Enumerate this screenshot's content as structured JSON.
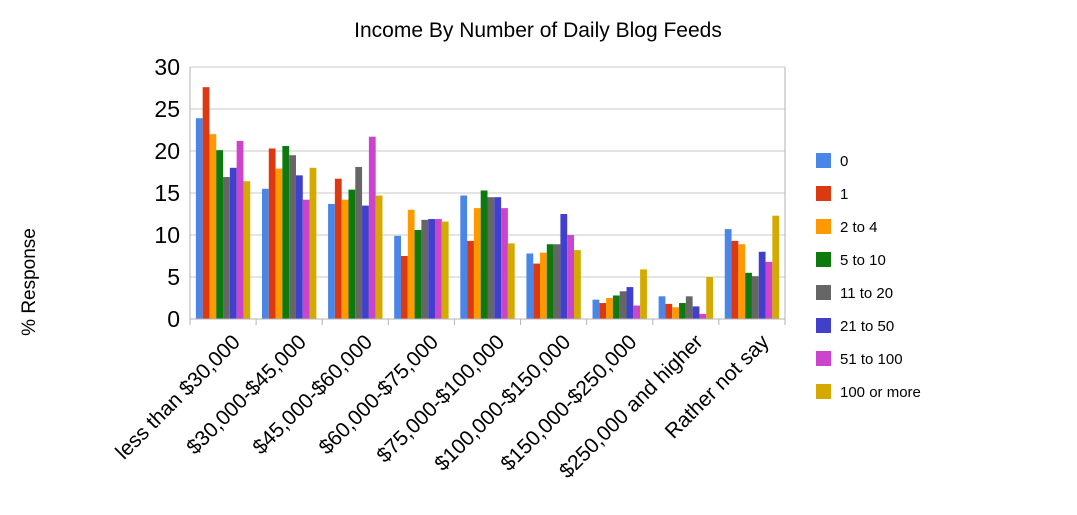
{
  "chart_data": {
    "type": "bar",
    "title": "Income By Number of Daily Blog Feeds",
    "xlabel": "",
    "ylabel": "% Response",
    "ylim": [
      0,
      30
    ],
    "yticks": [
      0,
      5,
      10,
      15,
      20,
      25,
      30
    ],
    "grid": "horizontal",
    "legend_position": "right",
    "categories": [
      "less than $30,000",
      "$30,000-$45,000",
      "$45,000-$60,000",
      "$60,000-$75,000",
      "$75,000-$100,000",
      "$100,000-$150,000",
      "$150,000-$250,000",
      "$250,000 and higher",
      "Rather not say"
    ],
    "series": [
      {
        "name": "0",
        "color": "#4a86e8",
        "values": [
          23.9,
          15.5,
          13.7,
          9.9,
          14.7,
          7.8,
          2.3,
          2.7,
          10.7
        ]
      },
      {
        "name": "1",
        "color": "#dc3912",
        "values": [
          27.6,
          20.3,
          16.7,
          7.5,
          9.3,
          6.6,
          1.9,
          1.8,
          9.3
        ]
      },
      {
        "name": "2 to 4",
        "color": "#ff9900",
        "values": [
          22.0,
          17.9,
          14.2,
          13.0,
          13.2,
          7.9,
          2.5,
          1.4,
          8.9
        ]
      },
      {
        "name": "5 to 10",
        "color": "#0d7a0d",
        "values": [
          20.1,
          20.6,
          15.4,
          10.6,
          15.3,
          8.9,
          2.8,
          1.9,
          5.5
        ]
      },
      {
        "name": "11 to 20",
        "color": "#666666",
        "values": [
          16.9,
          19.5,
          18.1,
          11.8,
          14.5,
          8.9,
          3.3,
          2.7,
          5.1
        ]
      },
      {
        "name": "21 to 50",
        "color": "#4040cc",
        "values": [
          18.0,
          17.1,
          13.5,
          11.9,
          14.5,
          12.5,
          3.8,
          1.5,
          8.0
        ]
      },
      {
        "name": "51 to 100",
        "color": "#cc44cc",
        "values": [
          21.2,
          14.2,
          21.7,
          11.9,
          13.2,
          10.0,
          1.6,
          0.6,
          6.8
        ]
      },
      {
        "name": "100 or more",
        "color": "#d4aa00",
        "values": [
          16.4,
          18.0,
          14.7,
          11.6,
          9.0,
          8.2,
          5.9,
          5.0,
          12.3
        ]
      }
    ]
  }
}
